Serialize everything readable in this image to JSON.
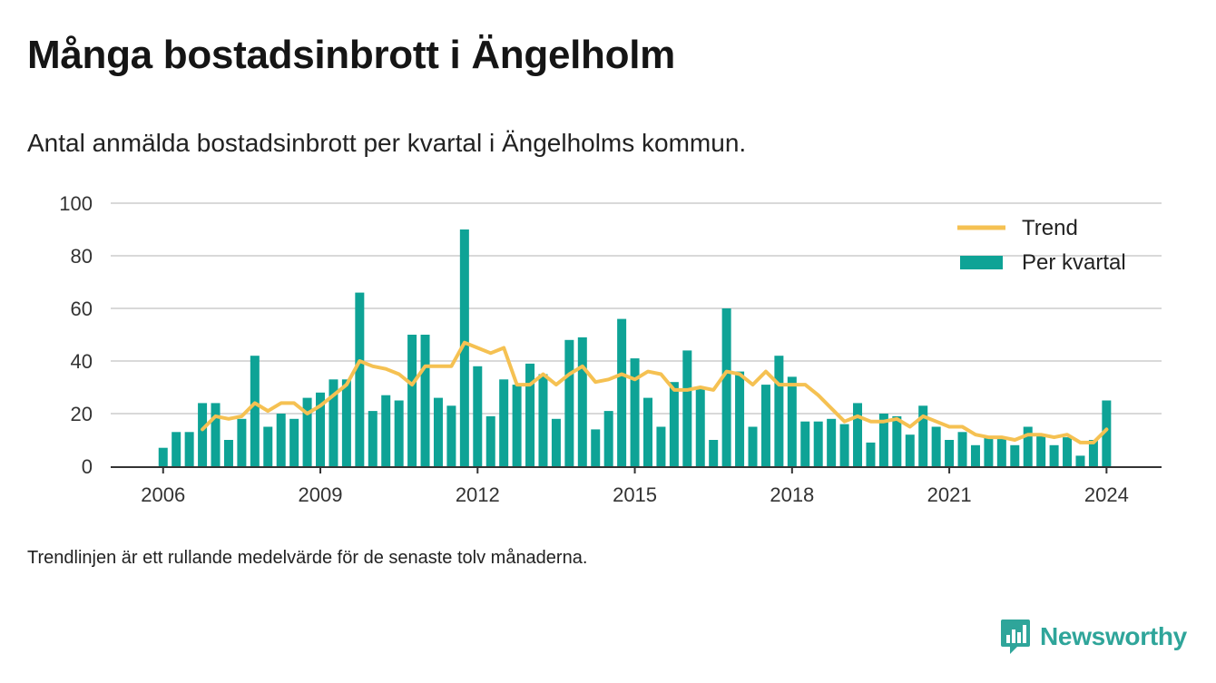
{
  "header": {
    "title": "Många bostadsinbrott i Ängelholm",
    "subtitle": "Antal anmälda bostadsinbrott per kvartal i Ängelholms kommun."
  },
  "footnote": "Trendlinjen är ett rullande medelvärde för de senaste tolv månaderna.",
  "brand": {
    "name": "Newsworthy",
    "icon": "newsworthy-logo-icon",
    "color": "#2fa59a"
  },
  "colors": {
    "bars": "#0ea396",
    "trend": "#f5c152",
    "grid": "#d9d9d9",
    "axis": "#333333"
  },
  "chart_data": {
    "type": "bar",
    "title": "Många bostadsinbrott i Ängelholm",
    "subtitle": "Antal anmälda bostadsinbrott per kvartal i Ängelholms kommun.",
    "xlabel": "",
    "ylabel": "",
    "ylim": [
      0,
      100
    ],
    "yticks": [
      0,
      20,
      40,
      60,
      80,
      100
    ],
    "xticks": [
      2006,
      2009,
      2012,
      2015,
      2018,
      2021,
      2024
    ],
    "xlim": [
      2005,
      2025.05
    ],
    "grid": true,
    "legend": "top-right",
    "legend_entries": [
      "Trend",
      "Per kvartal"
    ],
    "series": [
      {
        "name": "Per kvartal",
        "kind": "bar",
        "x": [
          2006.0,
          2006.25,
          2006.5,
          2006.75,
          2007.0,
          2007.25,
          2007.5,
          2007.75,
          2008.0,
          2008.25,
          2008.5,
          2008.75,
          2009.0,
          2009.25,
          2009.5,
          2009.75,
          2010.0,
          2010.25,
          2010.5,
          2010.75,
          2011.0,
          2011.25,
          2011.5,
          2011.75,
          2012.0,
          2012.25,
          2012.5,
          2012.75,
          2013.0,
          2013.25,
          2013.5,
          2013.75,
          2014.0,
          2014.25,
          2014.5,
          2014.75,
          2015.0,
          2015.25,
          2015.5,
          2015.75,
          2016.0,
          2016.25,
          2016.5,
          2016.75,
          2017.0,
          2017.25,
          2017.5,
          2017.75,
          2018.0,
          2018.25,
          2018.5,
          2018.75,
          2019.0,
          2019.25,
          2019.5,
          2019.75,
          2020.0,
          2020.25,
          2020.5,
          2020.75,
          2021.0,
          2021.25,
          2021.5,
          2021.75,
          2022.0,
          2022.25,
          2022.5,
          2022.75,
          2023.0,
          2023.25,
          2023.5,
          2023.75,
          2024.0
        ],
        "values": [
          7,
          13,
          13,
          24,
          24,
          10,
          18,
          42,
          15,
          20,
          18,
          26,
          28,
          33,
          33,
          66,
          21,
          27,
          25,
          50,
          50,
          26,
          23,
          90,
          38,
          19,
          33,
          31,
          39,
          35,
          18,
          48,
          49,
          14,
          21,
          56,
          41,
          26,
          15,
          32,
          44,
          30,
          10,
          60,
          36,
          15,
          31,
          42,
          34,
          17,
          17,
          18,
          16,
          24,
          9,
          20,
          19,
          12,
          23,
          15,
          10,
          13,
          8,
          11,
          11,
          8,
          15,
          12,
          8,
          11,
          4,
          10,
          25
        ]
      },
      {
        "name": "Trend",
        "kind": "line",
        "x": [
          2006.75,
          2007.0,
          2007.25,
          2007.5,
          2007.75,
          2008.0,
          2008.25,
          2008.5,
          2008.75,
          2009.0,
          2009.25,
          2009.5,
          2009.75,
          2010.0,
          2010.25,
          2010.5,
          2010.75,
          2011.0,
          2011.25,
          2011.5,
          2011.75,
          2012.0,
          2012.25,
          2012.5,
          2012.75,
          2013.0,
          2013.25,
          2013.5,
          2013.75,
          2014.0,
          2014.25,
          2014.5,
          2014.75,
          2015.0,
          2015.25,
          2015.5,
          2015.75,
          2016.0,
          2016.25,
          2016.5,
          2016.75,
          2017.0,
          2017.25,
          2017.5,
          2017.75,
          2018.0,
          2018.25,
          2018.5,
          2018.75,
          2019.0,
          2019.25,
          2019.5,
          2019.75,
          2020.0,
          2020.25,
          2020.5,
          2020.75,
          2021.0,
          2021.25,
          2021.5,
          2021.75,
          2022.0,
          2022.25,
          2022.5,
          2022.75,
          2023.0,
          2023.25,
          2023.5,
          2023.75,
          2024.0
        ],
        "values": [
          14,
          19,
          18,
          19,
          24,
          21,
          24,
          24,
          20,
          23,
          27,
          31,
          40,
          38,
          37,
          35,
          31,
          38,
          38,
          38,
          47,
          45,
          43,
          45,
          31,
          31,
          35,
          31,
          35,
          38,
          32,
          33,
          35,
          33,
          36,
          35,
          29,
          29,
          30,
          29,
          36,
          35,
          31,
          36,
          31,
          31,
          31,
          27,
          22,
          17,
          19,
          17,
          17,
          18,
          15,
          19,
          17,
          15,
          15,
          12,
          11,
          11,
          10,
          12,
          12,
          11,
          12,
          9,
          9,
          14
        ]
      }
    ]
  }
}
